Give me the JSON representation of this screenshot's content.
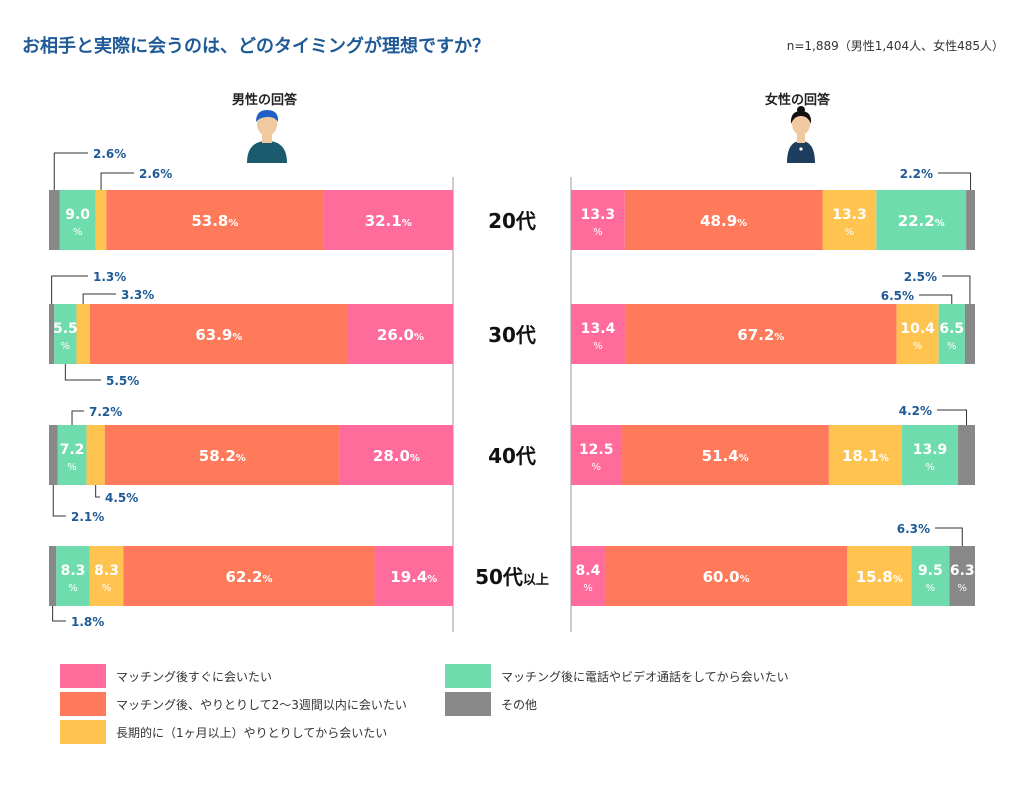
{
  "title": "お相手と実際に会うのは、どのタイミングが理想ですか？",
  "sample_note": "n=1,889（男性1,404人、女性485人）",
  "men_header": "男性の回答",
  "women_header": "女性の回答",
  "colors": {
    "pink": "#ff6b9a",
    "orange": "#ff7a5a",
    "yellow": "#ffc34f",
    "green": "#6fdcad",
    "gray": "#888888",
    "title": "#1f5a96",
    "callout": "#1f5a96"
  },
  "legend": [
    {
      "key": "pink",
      "label": "マッチング後すぐに会いたい"
    },
    {
      "key": "orange",
      "label": "マッチング後、やりとりして2〜3週間以内に会いたい"
    },
    {
      "key": "yellow",
      "label": "長期的に（1ヶ月以上）やりとりしてから会いたい"
    },
    {
      "key": "green",
      "label": "マッチング後に電話やビデオ通話をしてから会いたい"
    },
    {
      "key": "gray",
      "label": "その他"
    }
  ],
  "chart_data": {
    "type": "bar",
    "orientation": "horizontal-stacked",
    "unit": "%",
    "categories": [
      "20代",
      "30代",
      "40代",
      "50代以上"
    ],
    "category_suffix": [
      "",
      "",
      "",
      "以上"
    ],
    "men": [
      {
        "gray": "2.6",
        "green": "9.0",
        "yellow": "2.6",
        "orange": "53.8",
        "pink": "32.1"
      },
      {
        "gray": "1.3",
        "green": "5.5",
        "yellow": "3.3",
        "orange": "63.9",
        "pink": "26.0"
      },
      {
        "gray": "2.1",
        "green": "7.2",
        "yellow": "4.5",
        "orange": "58.2",
        "pink": "28.0"
      },
      {
        "gray": "1.8",
        "green": "8.3",
        "yellow": "8.3",
        "orange": "62.2",
        "pink": "19.4"
      }
    ],
    "women": [
      {
        "pink": "13.3",
        "orange": "48.9",
        "yellow": "13.3",
        "green": "22.2",
        "gray": "2.2"
      },
      {
        "pink": "13.4",
        "orange": "67.2",
        "yellow": "10.4",
        "green": "6.5",
        "gray": "2.5"
      },
      {
        "pink": "12.5",
        "orange": "51.4",
        "yellow": "18.1",
        "green": "13.9",
        "gray": "4.2"
      },
      {
        "pink": "8.4",
        "orange": "60.0",
        "yellow": "15.8",
        "green": "9.5",
        "gray": "6.3"
      }
    ]
  }
}
